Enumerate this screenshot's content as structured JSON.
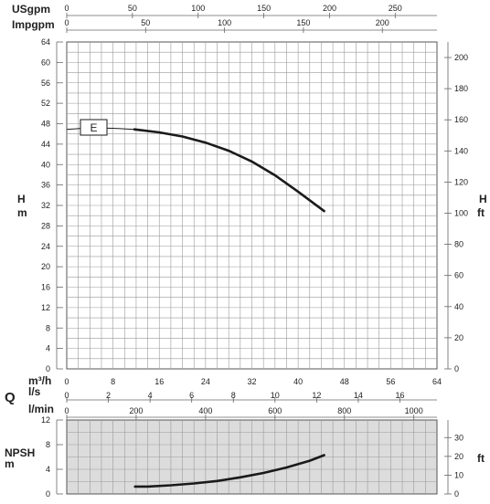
{
  "chart_data": [
    {
      "type": "line",
      "title": "",
      "x_scales": [
        {
          "label": "USgpm",
          "ticks": [
            "0",
            "50",
            "100",
            "150",
            "200",
            "250"
          ]
        },
        {
          "label": "Impgpm",
          "ticks": [
            "0",
            "50",
            "100",
            "150",
            "200"
          ]
        },
        {
          "label": "m³/h",
          "ticks": [
            "0",
            "8",
            "16",
            "24",
            "32",
            "40",
            "48",
            "56",
            "64"
          ],
          "xlim": [
            0,
            64
          ]
        },
        {
          "label": "l/s",
          "ticks": [
            "0",
            "2",
            "4",
            "6",
            "8",
            "10",
            "12",
            "14",
            "16"
          ]
        },
        {
          "label": "l/min",
          "ticks": [
            "0",
            "200",
            "400",
            "600",
            "800",
            "1000"
          ]
        }
      ],
      "q_symbol": "Q",
      "ylabel_left": [
        "H",
        "m"
      ],
      "ylabel_right": [
        "H",
        "ft"
      ],
      "yticks_left": [
        "0",
        "4",
        "8",
        "12",
        "16",
        "20",
        "24",
        "28",
        "32",
        "36",
        "40",
        "44",
        "48",
        "52",
        "56",
        "60",
        "64"
      ],
      "ylim": [
        0,
        64
      ],
      "yticks_right": [
        "0",
        "20",
        "40",
        "60",
        "80",
        "100",
        "120",
        "140",
        "160",
        "180",
        "200"
      ],
      "grid": true,
      "series": [
        {
          "name": "E",
          "color": "#1a1a1a",
          "dashed_part": {
            "x": [
              0,
              4,
              8,
              11.7
            ],
            "y": [
              46.9,
              47.2,
              47.1,
              46.9
            ]
          },
          "solid_part": {
            "x": [
              11.7,
              16,
              20,
              24,
              28,
              32,
              36,
              40,
              44.5
            ],
            "y": [
              46.9,
              46.3,
              45.5,
              44.3,
              42.7,
              40.6,
              37.9,
              34.7,
              30.9
            ]
          }
        }
      ]
    },
    {
      "type": "line",
      "title": "",
      "ylabel_left": [
        "NPSH",
        "m"
      ],
      "ylabel_right": [
        "ft"
      ],
      "yticks_left": [
        "0",
        "4",
        "8",
        "12"
      ],
      "ylim": [
        0,
        12
      ],
      "yticks_right": [
        "0",
        "10",
        "20",
        "30"
      ],
      "grid": true,
      "series": [
        {
          "name": "",
          "color": "#1a1a1a",
          "x": [
            11.8,
            14,
            18,
            22,
            26,
            30,
            34,
            38,
            42,
            44.5
          ],
          "y": [
            1.2,
            1.2,
            1.4,
            1.7,
            2.1,
            2.7,
            3.4,
            4.3,
            5.4,
            6.3
          ]
        }
      ]
    }
  ]
}
